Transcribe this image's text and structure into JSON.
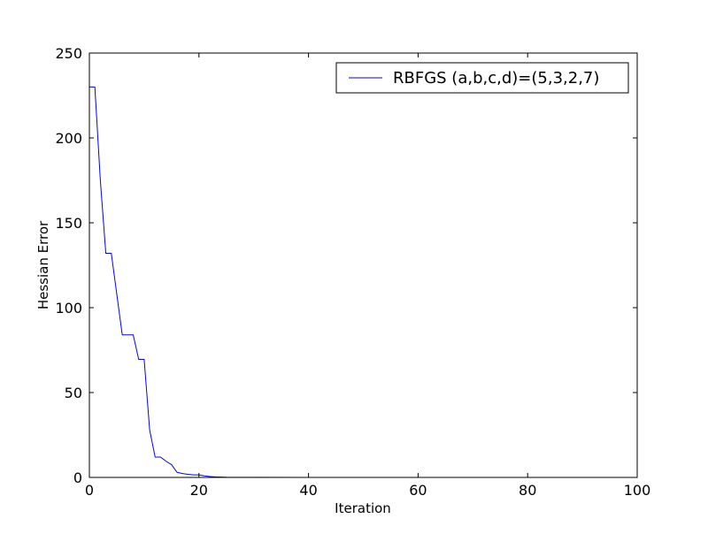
{
  "chart_data": {
    "type": "line",
    "title": "",
    "xlabel": "Iteration",
    "ylabel": "Hessian Error",
    "xlim": [
      0,
      100
    ],
    "ylim": [
      0,
      250
    ],
    "xticks": [
      0,
      20,
      40,
      60,
      80,
      100
    ],
    "yticks": [
      0,
      50,
      100,
      150,
      200,
      250
    ],
    "grid": false,
    "legend_position": "top-right",
    "series": [
      {
        "name": "RBFGS (a,b,c,d)=(5,3,2,7)",
        "color": "#0000ff",
        "x": [
          0,
          1,
          2,
          3,
          4,
          5,
          6,
          7,
          8,
          9,
          10,
          11,
          12,
          13,
          14,
          15,
          16,
          17,
          18,
          19,
          20,
          21,
          22,
          23,
          24,
          25,
          30,
          40,
          50,
          60,
          70,
          80,
          90,
          100
        ],
        "y": [
          230,
          230,
          175,
          132,
          132,
          108,
          84,
          84,
          84,
          69.5,
          69.5,
          28,
          12,
          12,
          9.5,
          7.5,
          3,
          2.3,
          1.8,
          1.5,
          1.5,
          0.9,
          0.5,
          0.3,
          0.2,
          0.1,
          0.05,
          0.02,
          0.01,
          0.005,
          0.003,
          0.002,
          0.001,
          0.001
        ]
      }
    ]
  }
}
